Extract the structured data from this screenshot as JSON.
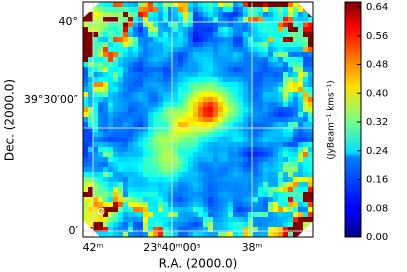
{
  "chart_data": {
    "type": "image",
    "xlabel": "R.A. (2000.0)",
    "ylabel": "Dec. (2000.0)",
    "xtick_labels": [
      "42ᵐ",
      "23ʰ40ᵐ00ˢ",
      "38ᵐ"
    ],
    "ytick_labels": [
      "40°",
      "39°30′00″",
      "0′"
    ],
    "marker": "Ø",
    "colorbar": {
      "label": "(JyBeam⁻¹ kms⁻¹)",
      "lim": [
        0,
        0.654
      ],
      "colormap": "jet",
      "ticks": [
        {
          "value": 0,
          "label": "0.00"
        },
        {
          "value": 0.08,
          "label": "0.08"
        },
        {
          "value": 0.16,
          "label": "0.16"
        },
        {
          "value": 0.24,
          "label": "0.24"
        },
        {
          "value": 0.32,
          "label": "0.32"
        },
        {
          "value": 0.4,
          "label": "0.40"
        },
        {
          "value": 0.48,
          "label": "0.48"
        },
        {
          "value": 0.56,
          "label": "0.56"
        },
        {
          "value": 0.64,
          "label": "0.64"
        }
      ]
    }
  }
}
